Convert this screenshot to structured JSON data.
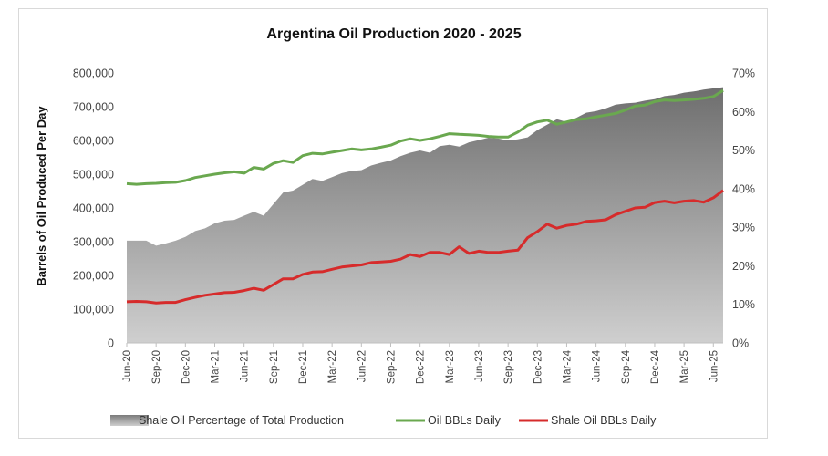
{
  "chart_data": {
    "type": "line",
    "title": "Argentina Oil Production  2020 - 2025",
    "ylabel": "Barrels of Oil Produced Per Day",
    "xlabel": "",
    "ylim": [
      0,
      800000
    ],
    "y2lim": [
      0,
      0.7
    ],
    "y_ticks": [
      "0",
      "100,000",
      "200,000",
      "300,000",
      "400,000",
      "500,000",
      "600,000",
      "700,000",
      "800,000"
    ],
    "y2_ticks": [
      "0%",
      "10%",
      "20%",
      "30%",
      "40%",
      "50%",
      "60%",
      "70%"
    ],
    "x_tick_labels": [
      "Jun-20",
      "Sep-20",
      "Dec-20",
      "Mar-21",
      "Jun-21",
      "Sep-21",
      "Dec-21",
      "Mar-22",
      "Jun-22",
      "Sep-22",
      "Dec-22",
      "Mar-23",
      "Jun-23",
      "Sep-23",
      "Dec-23",
      "Mar-24",
      "Jun-24",
      "Sep-24",
      "Dec-24",
      "Mar-25",
      "Jun-25"
    ],
    "legend_position": "bottom",
    "grid": false,
    "series": [
      {
        "name": "Shale Oil Percentage of Total Production",
        "type": "area",
        "axis": "right",
        "color": "#8c8c8c",
        "values": [
          0.265,
          0.265,
          0.265,
          0.252,
          0.258,
          0.265,
          0.275,
          0.29,
          0.297,
          0.31,
          0.317,
          0.319,
          0.33,
          0.34,
          0.33,
          0.36,
          0.39,
          0.395,
          0.41,
          0.425,
          0.42,
          0.43,
          0.44,
          0.446,
          0.448,
          0.46,
          0.467,
          0.473,
          0.484,
          0.493,
          0.499,
          0.493,
          0.51,
          0.514,
          0.509,
          0.52,
          0.526,
          0.532,
          0.53,
          0.525,
          0.528,
          0.533,
          0.552,
          0.566,
          0.58,
          0.573,
          0.584,
          0.597,
          0.601,
          0.608,
          0.618,
          0.621,
          0.623,
          0.628,
          0.632,
          0.64,
          0.643,
          0.649,
          0.652,
          0.657,
          0.66,
          0.663
        ]
      },
      {
        "name": "Oil BBLs Daily",
        "type": "line",
        "axis": "left",
        "color": "#6aa84f",
        "values": [
          472000,
          470000,
          472000,
          473000,
          475000,
          476000,
          481000,
          490000,
          495000,
          500000,
          504000,
          507000,
          503000,
          520000,
          515000,
          532000,
          540000,
          535000,
          555000,
          562000,
          560000,
          565000,
          570000,
          575000,
          572000,
          575000,
          580000,
          586000,
          598000,
          605000,
          600000,
          605000,
          612000,
          620000,
          618000,
          617000,
          615000,
          612000,
          610000,
          610000,
          625000,
          645000,
          655000,
          660000,
          648000,
          655000,
          662000,
          664000,
          670000,
          675000,
          680000,
          690000,
          702000,
          705000,
          715000,
          720000,
          718000,
          720000,
          722000,
          725000,
          730000,
          748000
        ]
      },
      {
        "name": "Shale Oil BBLs Daily",
        "type": "line",
        "axis": "left",
        "color": "#d62b2b",
        "values": [
          122000,
          123000,
          122000,
          118000,
          120000,
          120000,
          128000,
          135000,
          141000,
          145000,
          149000,
          150000,
          155000,
          162000,
          156000,
          173000,
          190000,
          190000,
          203000,
          210000,
          211000,
          218000,
          225000,
          228000,
          231000,
          238000,
          240000,
          242000,
          248000,
          262000,
          256000,
          268000,
          268000,
          262000,
          285000,
          265000,
          272000,
          268000,
          268000,
          272000,
          275000,
          312000,
          330000,
          352000,
          340000,
          348000,
          352000,
          360000,
          362000,
          365000,
          380000,
          390000,
          400000,
          402000,
          416000,
          420000,
          415000,
          420000,
          422000,
          417000,
          430000,
          452000
        ]
      }
    ]
  }
}
